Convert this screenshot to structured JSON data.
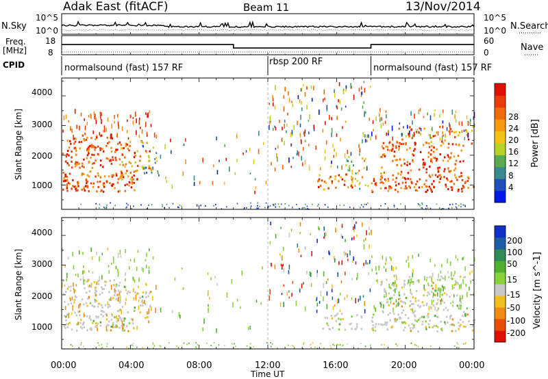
{
  "header": {
    "station": "Adak East (fitACF)",
    "beam": "Beam 11",
    "date": "13/Nov/2014"
  },
  "noise_panel": {
    "left_label": "N.Sky",
    "left_ticks": [
      "10^5",
      "10^0"
    ],
    "right_label": "N.Search",
    "right_ticks": [
      "10^5",
      "10^0"
    ]
  },
  "freq_panel": {
    "left_label_1": "Freq.",
    "left_label_2": "[MHz]",
    "left_ticks": [
      "18",
      "8"
    ],
    "right_label": "Nave",
    "right_ticks": [
      "60",
      "0"
    ],
    "freq_high_mhz": 13.5,
    "freq_low_mhz": 10.7
  },
  "cpid_panel": {
    "label": "CPID",
    "segments": [
      {
        "start": 0,
        "end": 12,
        "text": "normalsound (fast) 157 RF"
      },
      {
        "start": 12,
        "end": 18,
        "text": "rbsp 200 RF"
      },
      {
        "start": 18,
        "end": 24,
        "text": "normalsound (fast) 157 RF"
      }
    ]
  },
  "colors": {
    "power_scale": [
      "#0018e6",
      "#1f4fb8",
      "#3a8a8f",
      "#5aaa4f",
      "#b8d42a",
      "#f2c215",
      "#f59a10",
      "#f06c0c",
      "#e83d06",
      "#dd1000"
    ],
    "velocity_scale": [
      "#1030c8",
      "#1e5ea8",
      "#2e8a58",
      "#52b030",
      "#86d238",
      "#c8c8c8",
      "#f0c020",
      "#f08a10",
      "#e84e08",
      "#dd1000"
    ]
  },
  "chart_data": [
    {
      "type": "heatmap",
      "name": "power",
      "ylabel": "Slant Range [km]",
      "yticks": [
        1000,
        2000,
        3000,
        4000
      ],
      "ylim": [
        180,
        4600
      ],
      "xlim": [
        0,
        24
      ],
      "colorbar_label": "Power [dB]",
      "colorbar_ticks": [
        "4",
        "8",
        "12",
        "16",
        "20",
        "24",
        "28"
      ],
      "colorbar_range": [
        0,
        32
      ],
      "description_regions": [
        {
          "t": [
            0,
            5.5
          ],
          "range_km": [
            800,
            2800
          ],
          "value_db": 28
        },
        {
          "t": [
            14.5,
            18
          ],
          "range_km": [
            900,
            1500
          ],
          "value_db": 18
        },
        {
          "t": [
            18,
            24
          ],
          "range_km": [
            800,
            3000
          ],
          "value_db": 26
        }
      ]
    },
    {
      "type": "heatmap",
      "name": "velocity",
      "ylabel": "Slant Range [km]",
      "yticks": [
        1000,
        2000,
        3000,
        4000
      ],
      "ylim": [
        180,
        4600
      ],
      "xlim": [
        0,
        24
      ],
      "colorbar_label": "Velocity [m s^-1]",
      "colorbar_ticks": [
        "200",
        "100",
        "50",
        "15",
        "-15",
        "-50",
        "-100",
        "-200"
      ],
      "colorbar_range": [
        -250,
        250
      ],
      "description_regions": [
        {
          "t": [
            0,
            5
          ],
          "range_km": [
            800,
            2600
          ],
          "value_ms": 0
        },
        {
          "t": [
            15,
            18
          ],
          "range_km": [
            800,
            1500
          ],
          "value_ms": 0
        },
        {
          "t": [
            18,
            24
          ],
          "range_km": [
            800,
            2800
          ],
          "value_ms": 10
        }
      ]
    }
  ],
  "xaxis": {
    "label": "Time UT",
    "ticks": [
      "00:00",
      "04:00",
      "08:00",
      "12:00",
      "16:00",
      "20:00",
      "00:00"
    ]
  }
}
